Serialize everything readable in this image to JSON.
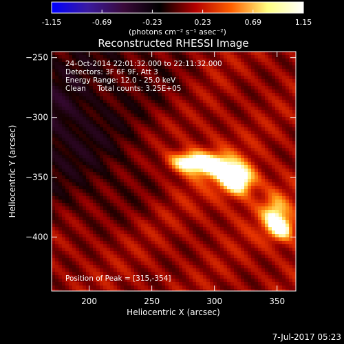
{
  "chart_data": {
    "type": "heatmap",
    "title": "Reconstructed RHESSI Image",
    "xlabel": "Heliocentric X (arcsec)",
    "ylabel": "Heliocentric Y (arcsec)",
    "xlim": [
      170,
      365
    ],
    "ylim": [
      -445,
      -245
    ],
    "xticks": [
      200,
      250,
      300,
      350
    ],
    "yticks": [
      -250,
      -300,
      -350,
      -400
    ],
    "colorbar": {
      "min": -1.15,
      "max": 1.15,
      "ticks": [
        "-1.15",
        "-0.69",
        "-0.23",
        "0.23",
        "0.69",
        "1.15"
      ],
      "unit_label": "(photons cm⁻² s⁻¹ asec⁻²)",
      "colors": [
        "#0000ff",
        "#3a1aa0",
        "#3a0a3a",
        "#000000",
        "#b40000",
        "#ff6000",
        "#ffff80",
        "#ffffff"
      ]
    },
    "annotations": [
      "24-Oct-2014 22:01:32.000 to 22:11:32.000",
      "Detectors: 3F 6F 9F, Att 3",
      "Energy Range: 12.0 - 25.0 keV",
      "Clean     Total counts: 3.25E+05"
    ],
    "peak_label": "Position of Peak = [315,-354]",
    "peak": [
      315,
      -354
    ],
    "sources": [
      {
        "x": 278,
        "y": -337,
        "intensity": 0.85,
        "sx": 10,
        "sy": 6
      },
      {
        "x": 300,
        "y": -340,
        "intensity": 0.9,
        "sx": 12,
        "sy": 7
      },
      {
        "x": 318,
        "y": -352,
        "intensity": 1.15,
        "sx": 9,
        "sy": 8
      },
      {
        "x": 348,
        "y": -383,
        "intensity": 0.7,
        "sx": 7,
        "sy": 11
      },
      {
        "x": 355,
        "y": -393,
        "intensity": 0.65,
        "sx": 6,
        "sy": 6
      }
    ]
  },
  "footer_date": "7-Jul-2017 05:23"
}
